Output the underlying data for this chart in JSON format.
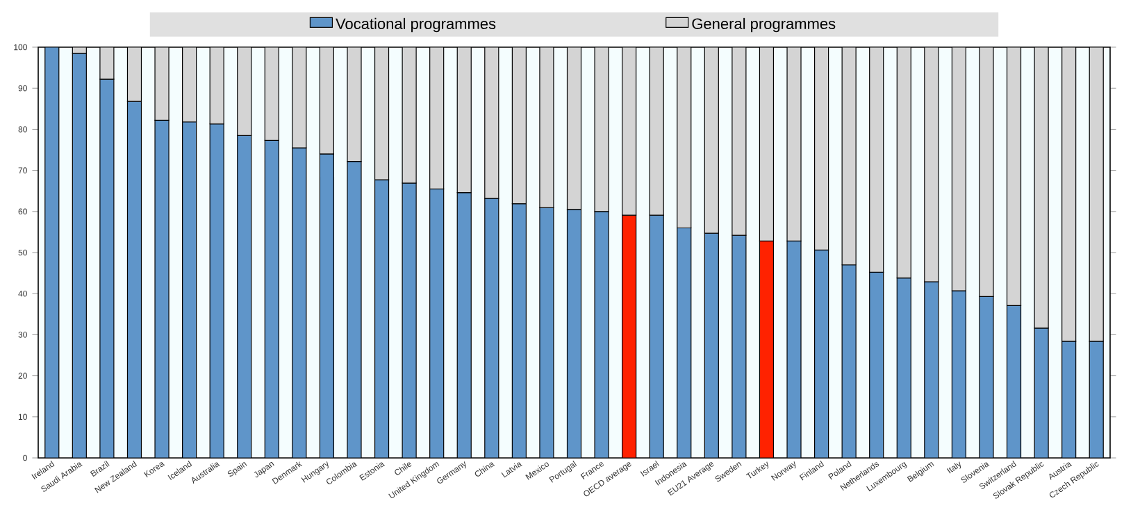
{
  "chart_data": {
    "type": "bar",
    "stacked": true,
    "categories": [
      "Ireland",
      "Saudi Arabia",
      "Brazil",
      "New Zealand",
      "Korea",
      "Iceland",
      "Australia",
      "Spain",
      "Japan",
      "Denmark",
      "Hungary",
      "Colombia",
      "Estonia",
      "Chile",
      "United Kingdom",
      "Germany",
      "China",
      "Latvia",
      "Mexico",
      "Portugal",
      "France",
      "OECD average",
      "Israel",
      "Indonesia",
      "EU21 Average",
      "Sweden",
      "Turkey",
      "Norway",
      "Finland",
      "Poland",
      "Netherlands",
      "Luxembourg",
      "Belgium",
      "Italy",
      "Slovenia",
      "Switzerland",
      "Slovak Republic",
      "Austria",
      "Czech Republic"
    ],
    "series": [
      {
        "name": "Vocational programmes",
        "color": "#5f95c9",
        "colors": [
          "#5f95c9",
          "#5f95c9",
          "#5f95c9",
          "#5f95c9",
          "#5f95c9",
          "#5f95c9",
          "#5f95c9",
          "#5f95c9",
          "#5f95c9",
          "#5f95c9",
          "#5f95c9",
          "#5f95c9",
          "#5f95c9",
          "#5f95c9",
          "#5f95c9",
          "#5f95c9",
          "#5f95c9",
          "#5f95c9",
          "#5f95c9",
          "#5f95c9",
          "#5f95c9",
          "#ff2200",
          "#5f95c9",
          "#5f95c9",
          "#5f95c9",
          "#5f95c9",
          "#ff2200",
          "#5f95c9",
          "#5f95c9",
          "#5f95c9",
          "#5f95c9",
          "#5f95c9",
          "#5f95c9",
          "#5f95c9",
          "#5f95c9",
          "#5f95c9",
          "#5f95c9",
          "#5f95c9",
          "#5f95c9"
        ],
        "values": [
          100,
          98.5,
          92.2,
          86.8,
          82.2,
          81.8,
          81.3,
          78.5,
          77.3,
          75.5,
          74.0,
          72.2,
          67.7,
          66.9,
          65.5,
          64.6,
          63.2,
          61.9,
          60.9,
          60.5,
          60.0,
          59.1,
          59.1,
          56.0,
          54.7,
          54.2,
          52.8,
          52.8,
          50.6,
          47.0,
          45.2,
          43.8,
          42.9,
          40.7,
          39.3,
          37.1,
          31.6,
          28.4,
          28.4
        ]
      },
      {
        "name": "General programmes",
        "color": "#d4d4d4",
        "values": [
          null,
          1.5,
          7.8,
          13.2,
          17.8,
          18.2,
          18.7,
          21.5,
          22.7,
          24.5,
          26.0,
          27.8,
          32.3,
          33.1,
          34.5,
          35.4,
          36.8,
          38.1,
          39.1,
          39.5,
          40.0,
          40.9,
          40.9,
          44.0,
          45.3,
          45.8,
          47.2,
          47.2,
          49.4,
          53.0,
          54.8,
          56.2,
          57.1,
          59.3,
          60.7,
          62.9,
          68.4,
          71.6,
          71.6
        ]
      }
    ],
    "ylim": [
      0,
      100
    ],
    "yticks": [
      0,
      10,
      20,
      30,
      40,
      50,
      60,
      70,
      80,
      90,
      100
    ],
    "grid": false,
    "legend": "top"
  }
}
